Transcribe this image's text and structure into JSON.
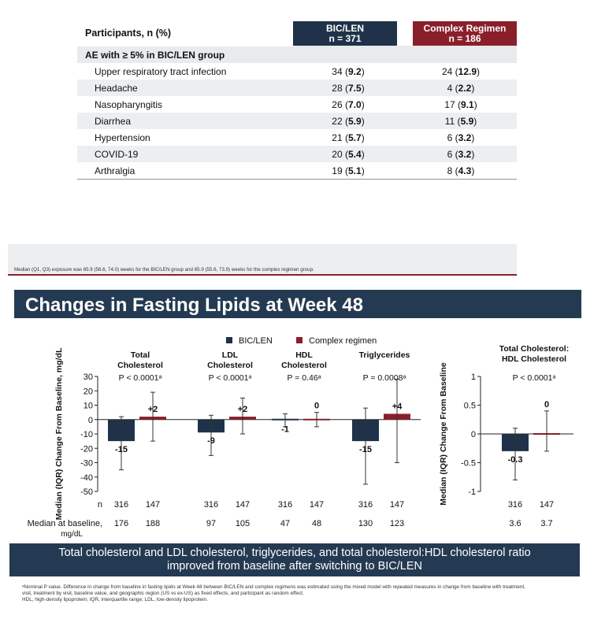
{
  "ae_table": {
    "header": {
      "label": "Participants, n (%)",
      "bic_line1": "BIC/LEN",
      "bic_line2": "n = 371",
      "cmp_line1": "Complex Regimen",
      "cmp_line2": "n = 186"
    },
    "section": "AE with ≥ 5% in BIC/LEN group",
    "rows": [
      {
        "term": "Upper respiratory tract infection",
        "bic_n": "34",
        "bic_pct": "9.2",
        "cmp_n": "24",
        "cmp_pct": "12.9"
      },
      {
        "term": "Headache",
        "bic_n": "28",
        "bic_pct": "7.5",
        "cmp_n": "4",
        "cmp_pct": "2.2"
      },
      {
        "term": "Nasopharyngitis",
        "bic_n": "26",
        "bic_pct": "7.0",
        "cmp_n": "17",
        "cmp_pct": "9.1"
      },
      {
        "term": "Diarrhea",
        "bic_n": "22",
        "bic_pct": "5.9",
        "cmp_n": "11",
        "cmp_pct": "5.9"
      },
      {
        "term": "Hypertension",
        "bic_n": "21",
        "bic_pct": "5.7",
        "cmp_n": "6",
        "cmp_pct": "3.2"
      },
      {
        "term": "COVID-19",
        "bic_n": "20",
        "bic_pct": "5.4",
        "cmp_n": "6",
        "cmp_pct": "3.2"
      },
      {
        "term": "Arthralgia",
        "bic_n": "19",
        "bic_pct": "5.1",
        "cmp_n": "8",
        "cmp_pct": "4.3"
      }
    ]
  },
  "exposure_note": "Median (Q1, Q3) exposure was 65.9 (56.6, 74.0) weeks for the BIC/LEN group and 65.9 (55.6, 73.9) weeks for the complex regimen group.",
  "title": "Changes in Fasting Lipids at Week 48",
  "colors": {
    "bic": "#1f3249",
    "complex": "#8a1f2c",
    "band": "#243a52"
  },
  "chart_data": [
    {
      "type": "bar",
      "legend": [
        "BIC/LEN",
        "Complex regimen"
      ],
      "ylabel": "Median (IQR) Change From Baseline, mg/dL",
      "ylim": [
        -50,
        30
      ],
      "yticks": [
        "30",
        "20",
        "10",
        "0",
        "-10",
        "-20",
        "-30",
        "-40",
        "-50"
      ],
      "categories": [
        {
          "name_line1": "Total",
          "name_line2": "Cholesterol",
          "p": "P < 0.0001ᵃ"
        },
        {
          "name_line1": "LDL",
          "name_line2": "Cholesterol",
          "p": "P < 0.0001ᵃ"
        },
        {
          "name_line1": "HDL",
          "name_line2": "Cholesterol",
          "p": "P = 0.46ᵃ"
        },
        {
          "name_line1": "Triglycerides",
          "name_line2": "",
          "p": "P = 0.0008ᵃ"
        }
      ],
      "series": [
        {
          "name": "BIC/LEN",
          "values": [
            -15,
            -9,
            -1,
            -15
          ],
          "labels": [
            "-15",
            "-9",
            "-1",
            "-15"
          ],
          "q1": [
            -35,
            -25,
            -5,
            -45
          ],
          "q3": [
            2,
            3,
            4,
            8
          ],
          "n": [
            "316",
            "316",
            "316",
            "316"
          ],
          "baseline": [
            "176",
            "97",
            "47",
            "130"
          ]
        },
        {
          "name": "Complex regimen",
          "values": [
            2,
            2,
            0,
            4
          ],
          "labels": [
            "+2",
            "+2",
            "0",
            "+4"
          ],
          "q1": [
            -15,
            -10,
            -5,
            -30
          ],
          "q3": [
            19,
            15,
            5,
            28
          ],
          "n": [
            "147",
            "147",
            "147",
            "147"
          ],
          "baseline": [
            "188",
            "105",
            "48",
            "123"
          ]
        }
      ]
    },
    {
      "type": "bar",
      "ylabel": "Median (IQR) Change From Baseline",
      "ylim": [
        -1,
        1
      ],
      "yticks": [
        "1",
        "0.5",
        "0",
        "-0.5",
        "-1"
      ],
      "categories": [
        {
          "name_line1": "Total Cholesterol:",
          "name_line2": "HDL Cholesterol",
          "p": "P < 0.0001ᵃ"
        }
      ],
      "series": [
        {
          "name": "BIC/LEN",
          "values": [
            -0.3
          ],
          "labels": [
            "-0.3"
          ],
          "q1": [
            -0.8
          ],
          "q3": [
            0.1
          ],
          "n": [
            "316"
          ],
          "baseline": [
            "3.6"
          ]
        },
        {
          "name": "Complex regimen",
          "values": [
            0
          ],
          "labels": [
            "0"
          ],
          "q1": [
            -0.3
          ],
          "q3": [
            0.4
          ],
          "n": [
            "147"
          ],
          "baseline": [
            "3.7"
          ]
        }
      ]
    }
  ],
  "row_labels": {
    "n": "n",
    "baseline_line1": "Median at baseline,",
    "baseline_line2": "mg/dL"
  },
  "conclusion_line1": "Total cholesterol and LDL cholesterol, triglycerides, and total cholesterol:HDL cholesterol ratio",
  "conclusion_line2": "improved from baseline after switching to BIC/LEN",
  "footnote_line1": "ᵃNominal P value. Difference in change from baseline in fasting lipids at Week 48 between BIC/LEN and complex regimens was estimated using the mixed model with repeated measures in change from baseline with treatment,",
  "footnote_line2": "visit, treatment by visit, baseline value, and geographic region (US vs ex-US) as fixed effects, and participant as random effect.",
  "footnote_line3": "HDL, high-density lipoprotein; IQR, interquartile range; LDL, low-density lipoprotein."
}
